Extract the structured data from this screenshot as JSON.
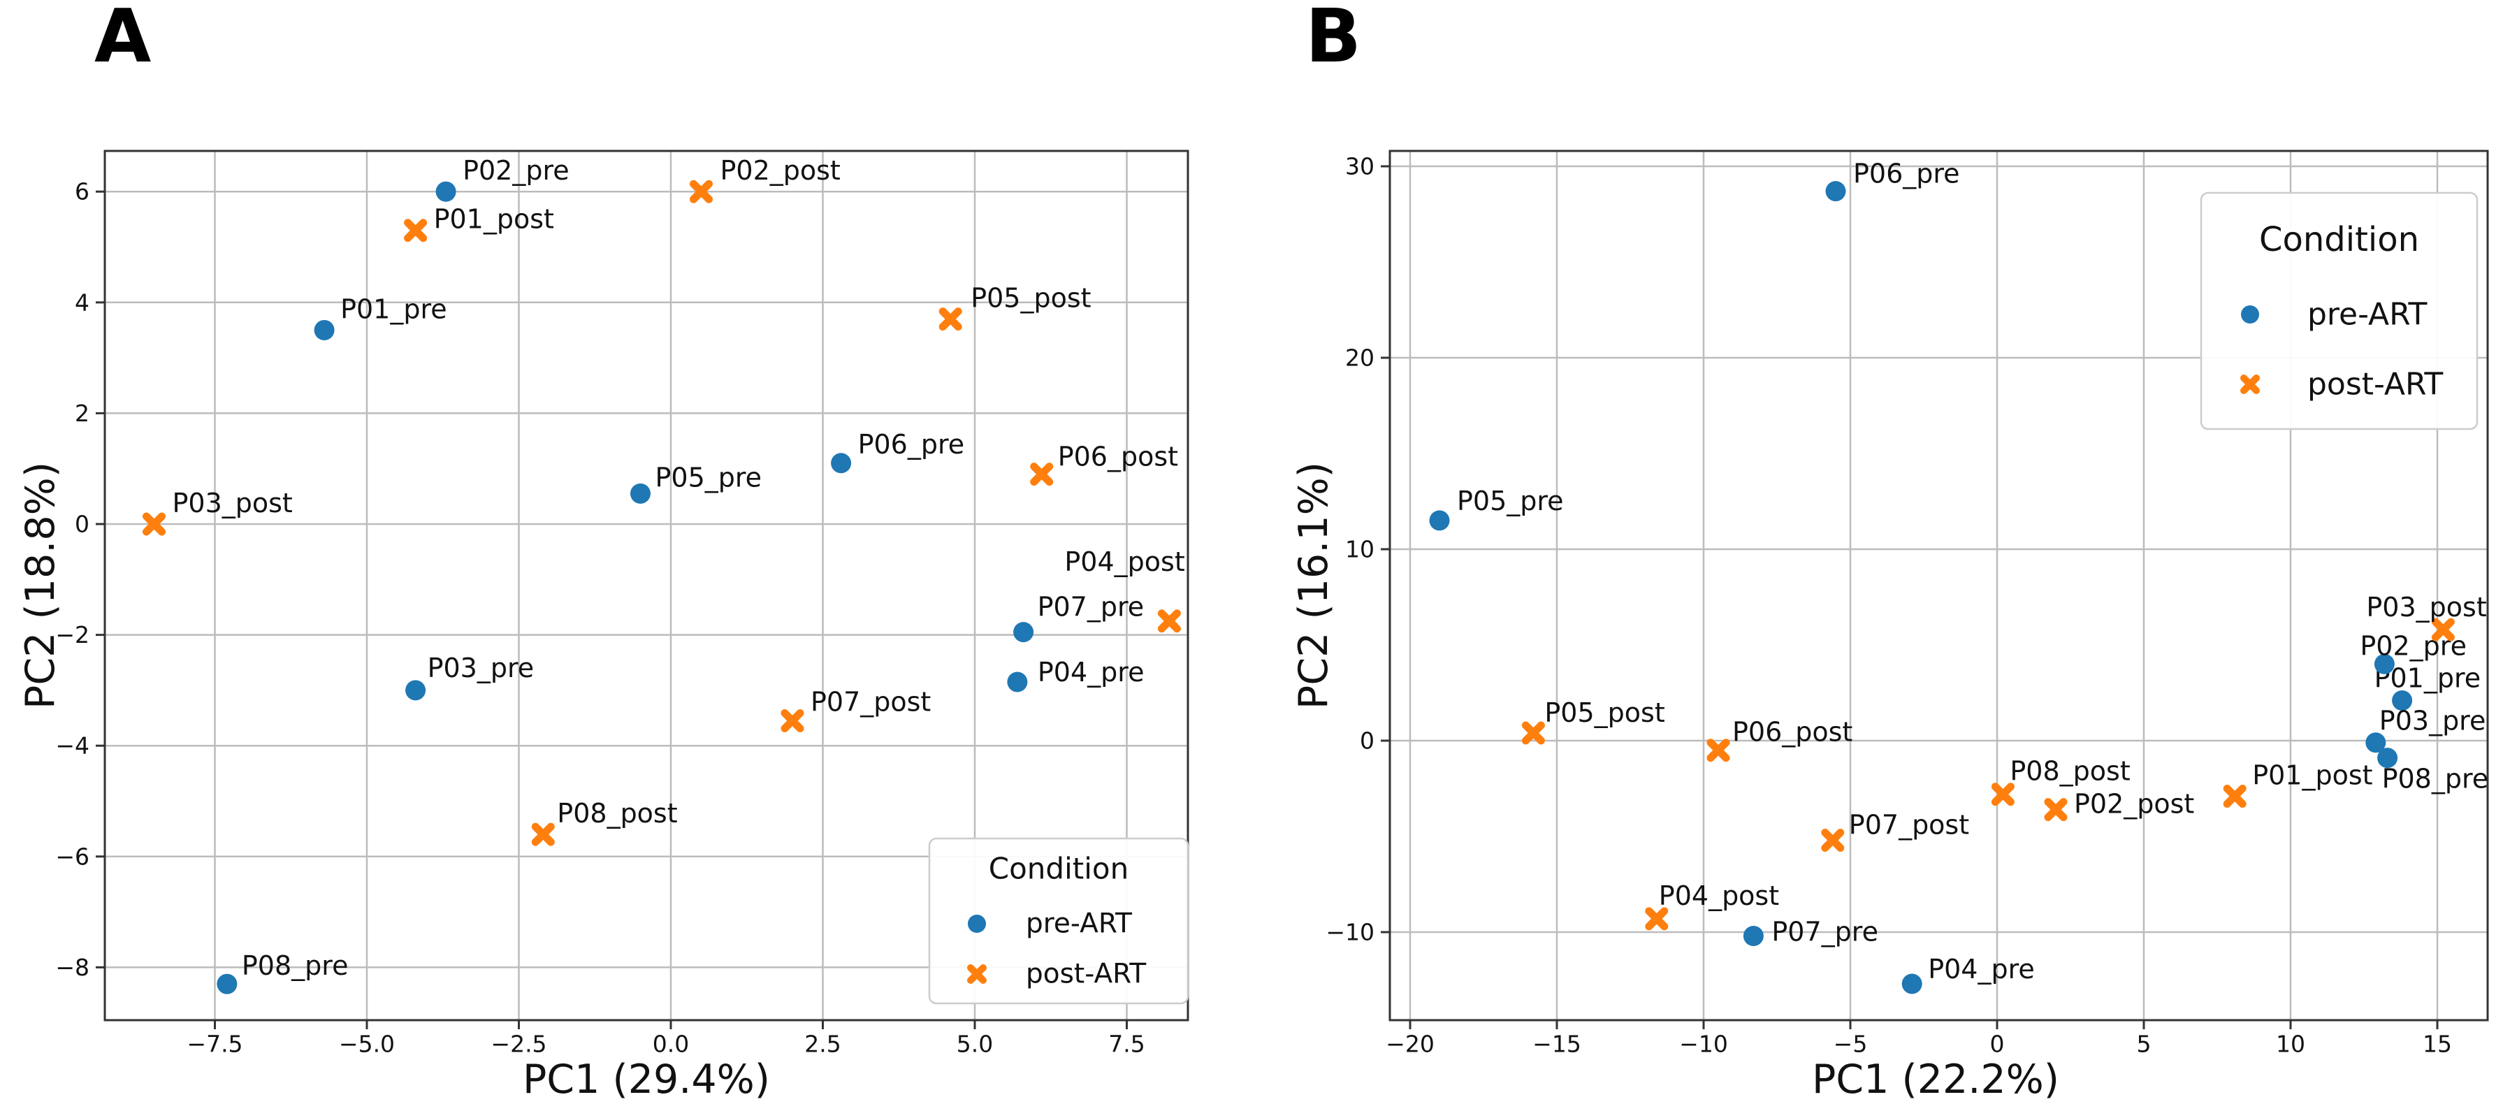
{
  "colors": {
    "pre_art": "#1f77b4",
    "post_art": "#ff7f0e",
    "grid": "#bcbcbc",
    "spine": "#333333",
    "tick": "#333333",
    "text": "#111111",
    "legend_border": "#cccccc",
    "background": "#ffffff"
  },
  "legend": {
    "title": "Condition",
    "entries": [
      {
        "label": "pre-ART",
        "marker": "circle",
        "color_key": "pre_art"
      },
      {
        "label": "post-ART",
        "marker": "x",
        "color_key": "post_art"
      }
    ]
  },
  "chart_data": [
    {
      "type": "scatter",
      "panel_label": "A",
      "xlabel": "PC1 (29.4%)",
      "ylabel": "PC2 (18.8%)",
      "xlim": [
        -9.3,
        8.5
      ],
      "ylim": [
        -9.0,
        6.7
      ],
      "grid": true,
      "legend_position": "lower right",
      "xticks": [
        {
          "v": -7.5,
          "label": "−7.5"
        },
        {
          "v": -5.0,
          "label": "−5.0"
        },
        {
          "v": -2.5,
          "label": "−2.5"
        },
        {
          "v": 0.0,
          "label": "0.0"
        },
        {
          "v": 2.5,
          "label": "2.5"
        },
        {
          "v": 5.0,
          "label": "5.0"
        },
        {
          "v": 7.5,
          "label": "7.5"
        }
      ],
      "yticks": [
        {
          "v": 6,
          "label": "6"
        },
        {
          "v": 4,
          "label": "4"
        },
        {
          "v": 2,
          "label": "2"
        },
        {
          "v": 0,
          "label": "0"
        },
        {
          "v": -2,
          "label": "−2"
        },
        {
          "v": -4,
          "label": "−4"
        },
        {
          "v": -6,
          "label": "−6"
        },
        {
          "v": -8,
          "label": "−8"
        }
      ],
      "series": [
        {
          "name": "pre-ART",
          "marker": "circle",
          "color_key": "pre_art",
          "points": [
            {
              "label": "P01_pre",
              "x": -5.7,
              "y": 3.5,
              "dx": 23,
              "dy": -30
            },
            {
              "label": "P02_pre",
              "x": -3.7,
              "y": 6.0,
              "dx": 24,
              "dy": -30
            },
            {
              "label": "P03_pre",
              "x": -4.2,
              "y": -3.0,
              "dx": 17,
              "dy": -32
            },
            {
              "label": "P04_pre",
              "x": 5.7,
              "y": -2.85,
              "dx": 29,
              "dy": -14
            },
            {
              "label": "P05_pre",
              "x": -0.5,
              "y": 0.55,
              "dx": 21,
              "dy": -23
            },
            {
              "label": "P06_pre",
              "x": 2.8,
              "y": 1.1,
              "dx": 24,
              "dy": -27
            },
            {
              "label": "P07_pre",
              "x": 5.8,
              "y": -1.95,
              "dx": 20,
              "dy": -36
            },
            {
              "label": "P08_pre",
              "x": -7.3,
              "y": -8.3,
              "dx": 21,
              "dy": -26
            }
          ]
        },
        {
          "name": "post-ART",
          "marker": "x",
          "color_key": "post_art",
          "points": [
            {
              "label": "P01_post",
              "x": -4.2,
              "y": 5.3,
              "dx": 26,
              "dy": -16
            },
            {
              "label": "P02_post",
              "x": 0.5,
              "y": 6.0,
              "dx": 27,
              "dy": -30
            },
            {
              "label": "P03_post",
              "x": -8.5,
              "y": 0.0,
              "dx": 26,
              "dy": -30
            },
            {
              "label": "P04_post",
              "x": 8.2,
              "y": -1.75,
              "dx": -150,
              "dy": -85
            },
            {
              "label": "P05_post",
              "x": 4.6,
              "y": 3.7,
              "dx": 29,
              "dy": -30
            },
            {
              "label": "P06_post",
              "x": 6.1,
              "y": 0.9,
              "dx": 23,
              "dy": -25
            },
            {
              "label": "P07_post",
              "x": 2.0,
              "y": -3.55,
              "dx": 26,
              "dy": -27
            },
            {
              "label": "P08_post",
              "x": -2.1,
              "y": -5.6,
              "dx": 20,
              "dy": -30
            }
          ]
        }
      ]
    },
    {
      "type": "scatter",
      "panel_label": "B",
      "xlabel": "PC1 (22.2%)",
      "ylabel": "PC2 (16.1%)",
      "xlim": [
        -20.7,
        16.7
      ],
      "ylim": [
        -14.7,
        30.8
      ],
      "grid": true,
      "legend_position": "upper right",
      "xticks": [
        {
          "v": -20,
          "label": "−20"
        },
        {
          "v": -15,
          "label": "−15"
        },
        {
          "v": -10,
          "label": "−10"
        },
        {
          "v": -5,
          "label": "−5"
        },
        {
          "v": 0,
          "label": "0"
        },
        {
          "v": 5,
          "label": "5"
        },
        {
          "v": 10,
          "label": "10"
        },
        {
          "v": 15,
          "label": "15"
        }
      ],
      "yticks": [
        {
          "v": 30,
          "label": "30"
        },
        {
          "v": 20,
          "label": "20"
        },
        {
          "v": 10,
          "label": "10"
        },
        {
          "v": 0,
          "label": "0"
        },
        {
          "v": -10,
          "label": "−10"
        }
      ],
      "series": [
        {
          "name": "pre-ART",
          "marker": "circle",
          "color_key": "pre_art",
          "points": [
            {
              "label": "P01_pre",
              "x": 13.8,
              "y": 2.1,
              "dx": -40,
              "dy": -32
            },
            {
              "label": "P02_pre",
              "x": 13.2,
              "y": 4.0,
              "dx": -35,
              "dy": -26
            },
            {
              "label": "P03_pre",
              "x": 12.9,
              "y": -0.1,
              "dx": 5,
              "dy": -31
            },
            {
              "label": "P04_pre",
              "x": -2.9,
              "y": -12.7,
              "dx": 23,
              "dy": -21
            },
            {
              "label": "P05_pre",
              "x": -19.0,
              "y": 11.5,
              "dx": 25,
              "dy": -28
            },
            {
              "label": "P06_pre",
              "x": -5.5,
              "y": 28.7,
              "dx": 25,
              "dy": -25
            },
            {
              "label": "P07_pre",
              "x": -8.3,
              "y": -10.2,
              "dx": 26,
              "dy": -6
            },
            {
              "label": "P08_pre",
              "x": 13.3,
              "y": -0.9,
              "dx": -8,
              "dy": 30
            }
          ]
        },
        {
          "name": "post-ART",
          "marker": "x",
          "color_key": "post_art",
          "points": [
            {
              "label": "P01_post",
              "x": 8.1,
              "y": -2.9,
              "dx": 25,
              "dy": -30
            },
            {
              "label": "P02_post",
              "x": 2.0,
              "y": -3.6,
              "dx": 26,
              "dy": -8
            },
            {
              "label": "P03_post",
              "x": 15.2,
              "y": 5.8,
              "dx": -110,
              "dy": -32
            },
            {
              "label": "P04_post",
              "x": -11.6,
              "y": -9.3,
              "dx": 3,
              "dy": -33
            },
            {
              "label": "P05_post",
              "x": -15.8,
              "y": 0.4,
              "dx": 16,
              "dy": -29
            },
            {
              "label": "P06_post",
              "x": -9.5,
              "y": -0.5,
              "dx": 20,
              "dy": -26
            },
            {
              "label": "P07_post",
              "x": -5.6,
              "y": -5.2,
              "dx": 23,
              "dy": -22
            },
            {
              "label": "P08_post",
              "x": 0.2,
              "y": -2.8,
              "dx": 10,
              "dy": -33
            }
          ]
        }
      ]
    }
  ]
}
